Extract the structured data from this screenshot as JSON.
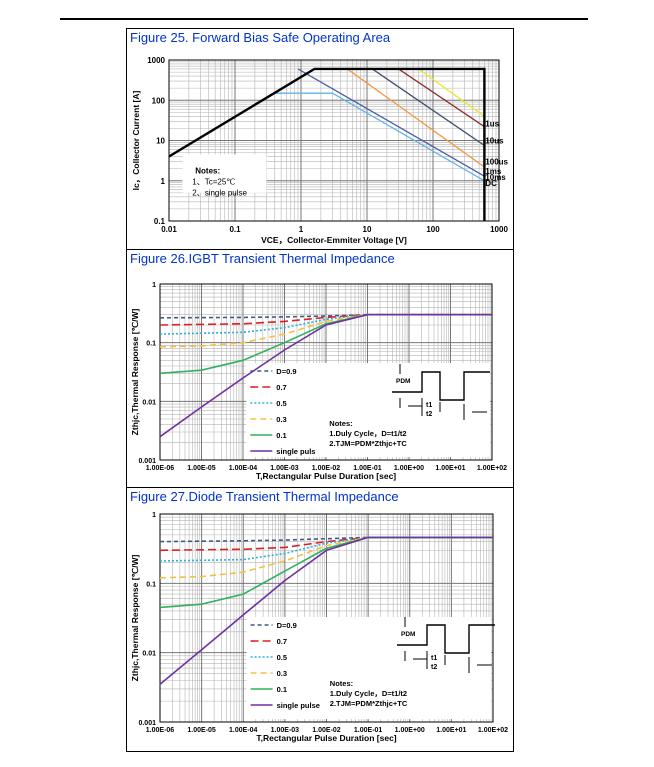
{
  "chart_data": [
    {
      "type": "line",
      "title": "Figure 25. Forward Bias Safe Operating Area",
      "xlabel": "VCE，Collector-Emmiter Voltage [V]",
      "ylabel": "Ic，Collector Current [A]",
      "x_scale": "log",
      "y_scale": "log",
      "xlim": [
        0.01,
        1000
      ],
      "ylim": [
        0.1,
        1000
      ],
      "x_tick_labels": [
        "0.01",
        "0.1",
        "1",
        "10",
        "100",
        "1000"
      ],
      "y_tick_labels": [
        "0.1",
        "1",
        "10",
        "100",
        "1000"
      ],
      "notes": [
        "Notes:",
        "1、Tc=25℃",
        "2、single pulse"
      ],
      "series": [
        {
          "name": "DC",
          "color": "#000000",
          "points": [
            [
              0.01,
              4
            ],
            [
              1.6,
              600
            ],
            [
              600,
              600
            ],
            [
              600,
              0.1
            ]
          ]
        },
        {
          "name": "10ms",
          "color": "#66b3e6",
          "points": [
            [
              0.4,
              150
            ],
            [
              3,
              150
            ],
            [
              600,
              1.0
            ]
          ]
        },
        {
          "name": "1ms",
          "color": "#4a5fa0",
          "points": [
            [
              0.9,
              600
            ],
            [
              600,
              1.3
            ]
          ]
        },
        {
          "name": "100us",
          "color": "#f5953a",
          "points": [
            [
              5,
              600
            ],
            [
              600,
              2.2
            ]
          ]
        },
        {
          "name": "10us",
          "color": "#3d4d6e",
          "points": [
            [
              12,
              600
            ],
            [
              600,
              7.5
            ]
          ]
        },
        {
          "name": "1us",
          "color": "#8b3030",
          "points": [
            [
              30,
              600
            ],
            [
              600,
              22
            ]
          ]
        },
        {
          "name": "",
          "color": "#e8e82a",
          "points": [
            [
              60,
              600
            ],
            [
              600,
              40
            ]
          ]
        }
      ],
      "labels": [
        "1us",
        "10us",
        "100us",
        "1ms",
        "10ms",
        "DC"
      ]
    },
    {
      "type": "line",
      "title": "Figure 26.IGBT Transient Thermal Impedance",
      "xlabel": "T,Rectangular Pulse Duration [sec]",
      "ylabel": "Zthjc,Thermal Response [℃/W]",
      "x_scale": "log",
      "y_scale": "log",
      "xlim": [
        1e-06,
        100
      ],
      "ylim": [
        0.001,
        1
      ],
      "x_tick_labels": [
        "1.00E-06",
        "1.00E-05",
        "1.00E-04",
        "1.00E-03",
        "1.00E-02",
        "1.00E-01",
        "1.00E+00",
        "1.00E+01",
        "1.00E+02"
      ],
      "y_tick_labels": [
        "0.001",
        "0.01",
        "0.1",
        "1"
      ],
      "notes": [
        "Notes:",
        "1.Duly Cycle，D=t1/t2",
        "2.TJM=PDM*Zthjc+TC"
      ],
      "diagram_labels": {
        "pdm": "PDM",
        "t1": "t1",
        "t2": "t2"
      },
      "series": [
        {
          "name": "D=0.9",
          "color": "#3d5a8a",
          "dash": "4,3",
          "values": [
            [
              1e-06,
              0.265
            ],
            [
              0.0001,
              0.27
            ],
            [
              0.001,
              0.275
            ],
            [
              0.01,
              0.285
            ],
            [
              0.1,
              0.3
            ],
            [
              100,
              0.3
            ]
          ]
        },
        {
          "name": "0.7",
          "color": "#e02020",
          "dash": "8,4",
          "values": [
            [
              1e-06,
              0.2
            ],
            [
              0.0001,
              0.21
            ],
            [
              0.001,
              0.23
            ],
            [
              0.01,
              0.27
            ],
            [
              0.1,
              0.3
            ],
            [
              100,
              0.3
            ]
          ]
        },
        {
          "name": "0.5",
          "color": "#2ab0e0",
          "dash": "2,2",
          "values": [
            [
              1e-06,
              0.14
            ],
            [
              0.0001,
              0.15
            ],
            [
              0.001,
              0.18
            ],
            [
              0.01,
              0.25
            ],
            [
              0.1,
              0.3
            ],
            [
              100,
              0.3
            ]
          ]
        },
        {
          "name": "0.3",
          "color": "#f5c040",
          "dash": "6,4",
          "values": [
            [
              1e-06,
              0.085
            ],
            [
              1e-05,
              0.088
            ],
            [
              0.0001,
              0.1
            ],
            [
              0.001,
              0.14
            ],
            [
              0.01,
              0.23
            ],
            [
              0.1,
              0.3
            ],
            [
              100,
              0.3
            ]
          ]
        },
        {
          "name": "0.1",
          "color": "#30b060",
          "dash": "",
          "values": [
            [
              1e-06,
              0.03
            ],
            [
              1e-05,
              0.034
            ],
            [
              0.0001,
              0.05
            ],
            [
              0.001,
              0.1
            ],
            [
              0.01,
              0.21
            ],
            [
              0.1,
              0.3
            ],
            [
              100,
              0.3
            ]
          ]
        },
        {
          "name": "single puls",
          "color": "#7030a0",
          "dash": "",
          "values": [
            [
              1e-06,
              0.0025
            ],
            [
              1e-05,
              0.008
            ],
            [
              0.0001,
              0.025
            ],
            [
              0.001,
              0.075
            ],
            [
              0.01,
              0.2
            ],
            [
              0.1,
              0.3
            ],
            [
              100,
              0.3
            ]
          ]
        }
      ]
    },
    {
      "type": "line",
      "title": "Figure 27.Diode Transient Thermal Impedance",
      "xlabel": "T,Rectangular Pulse Duration [sec]",
      "ylabel": "Zthjc,Thermal Response [℃/W]",
      "x_scale": "log",
      "y_scale": "log",
      "xlim": [
        1e-06,
        100
      ],
      "ylim": [
        0.001,
        1
      ],
      "x_tick_labels": [
        "1.00E-06",
        "1.00E-05",
        "1.00E-04",
        "1.00E-03",
        "1.00E-02",
        "1.00E-01",
        "1.00E+00",
        "1.00E+01",
        "1.00E+02"
      ],
      "y_tick_labels": [
        "0.001",
        "0.01",
        "0.1",
        "1"
      ],
      "notes": [
        "Notes:",
        "1.Duly Cycle，D=t1/t2",
        "2.TJM=PDM*Zthjc+TC"
      ],
      "diagram_labels": {
        "pdm": "PDM",
        "t1": "t1",
        "t2": "t2"
      },
      "series": [
        {
          "name": "D=0.9",
          "color": "#3d5a8a",
          "dash": "4,3",
          "values": [
            [
              1e-06,
              0.4
            ],
            [
              0.0001,
              0.41
            ],
            [
              0.001,
              0.42
            ],
            [
              0.01,
              0.44
            ],
            [
              0.1,
              0.46
            ],
            [
              100,
              0.46
            ]
          ]
        },
        {
          "name": "0.7",
          "color": "#e02020",
          "dash": "8,4",
          "values": [
            [
              1e-06,
              0.3
            ],
            [
              0.0001,
              0.31
            ],
            [
              0.001,
              0.33
            ],
            [
              0.01,
              0.4
            ],
            [
              0.1,
              0.46
            ],
            [
              100,
              0.46
            ]
          ]
        },
        {
          "name": "0.5",
          "color": "#2ab0e0",
          "dash": "2,2",
          "values": [
            [
              1e-06,
              0.21
            ],
            [
              0.0001,
              0.22
            ],
            [
              0.001,
              0.27
            ],
            [
              0.01,
              0.38
            ],
            [
              0.1,
              0.46
            ],
            [
              100,
              0.46
            ]
          ]
        },
        {
          "name": "0.3",
          "color": "#f5c040",
          "dash": "6,4",
          "values": [
            [
              1e-06,
              0.12
            ],
            [
              1e-05,
              0.125
            ],
            [
              0.0001,
              0.145
            ],
            [
              0.001,
              0.21
            ],
            [
              0.01,
              0.35
            ],
            [
              0.1,
              0.46
            ],
            [
              100,
              0.46
            ]
          ]
        },
        {
          "name": "0.1",
          "color": "#30b060",
          "dash": "",
          "values": [
            [
              1e-06,
              0.045
            ],
            [
              1e-05,
              0.05
            ],
            [
              0.0001,
              0.07
            ],
            [
              0.001,
              0.15
            ],
            [
              0.01,
              0.32
            ],
            [
              0.1,
              0.46
            ],
            [
              100,
              0.46
            ]
          ]
        },
        {
          "name": "single pulse",
          "color": "#7030a0",
          "dash": "",
          "values": [
            [
              1e-06,
              0.0035
            ],
            [
              1e-05,
              0.011
            ],
            [
              0.0001,
              0.035
            ],
            [
              0.001,
              0.11
            ],
            [
              0.01,
              0.3
            ],
            [
              0.1,
              0.46
            ],
            [
              100,
              0.46
            ]
          ]
        }
      ]
    }
  ]
}
